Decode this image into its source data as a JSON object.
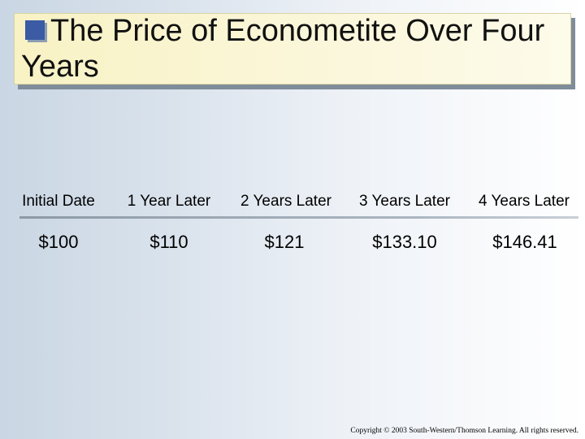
{
  "title": "The Price of Econometite Over Four Years",
  "table": {
    "headers": [
      "Initial Date",
      "1 Year Later",
      "2 Years Later",
      "3 Years Later",
      "4 Years Later"
    ],
    "values": [
      "$100",
      "$110",
      "$121",
      "$133.10",
      "$146.41"
    ]
  },
  "footer": {
    "copyright": "Copyright © 2003 South-Western/Thomson Learning. All rights reserved."
  },
  "colors": {
    "title_bullet": "#3b5ba5",
    "title_box": "#f8f2c4",
    "background_left": "#c9d6e3",
    "background_right": "#ffffff"
  }
}
